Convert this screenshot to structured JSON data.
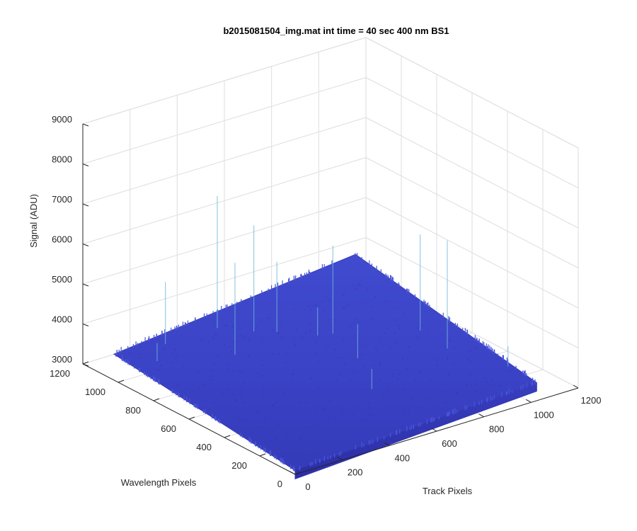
{
  "chart_data": {
    "type": "surface",
    "title": "b2015081504_img.mat int time = 40 sec  400 nm BS1",
    "xlabel": "Track Pixels",
    "ylabel": "Wavelength Pixels",
    "zlabel": "Signal (ADU)",
    "xlim": [
      0,
      1200
    ],
    "ylim": [
      0,
      1200
    ],
    "zlim": [
      3000,
      9000
    ],
    "x_ticks": [
      0,
      200,
      400,
      600,
      800,
      1000,
      1200
    ],
    "y_ticks": [
      0,
      200,
      400,
      600,
      800,
      1000,
      1200
    ],
    "z_ticks": [
      3000,
      4000,
      5000,
      6000,
      7000,
      8000,
      9000
    ],
    "grid": true,
    "surface_extent": {
      "x": [
        0,
        1024
      ],
      "y": [
        0,
        1024
      ]
    },
    "baseline_signal": 3600,
    "corner_signal": {
      "x0_y0": 3100,
      "x1024_y0": 3450,
      "x0_y1024": 3650,
      "x1024_y1024": 4300
    },
    "colormap": [
      "#2b2ea3",
      "#3a40c4",
      "#4753d6"
    ],
    "spikes": [
      {
        "x": 90,
        "y": 900,
        "z": 4050
      },
      {
        "x": 200,
        "y": 1000,
        "z": 5150
      },
      {
        "x": 330,
        "y": 780,
        "z": 5900
      },
      {
        "x": 500,
        "y": 900,
        "z": 6250
      },
      {
        "x": 420,
        "y": 1000,
        "z": 6900
      },
      {
        "x": 560,
        "y": 850,
        "z": 5350
      },
      {
        "x": 650,
        "y": 740,
        "z": 4300
      },
      {
        "x": 640,
        "y": 500,
        "z": 4450
      },
      {
        "x": 700,
        "y": 720,
        "z": 5800
      },
      {
        "x": 930,
        "y": 380,
        "z": 6300
      },
      {
        "x": 950,
        "y": 560,
        "z": 6000
      },
      {
        "x": 1000,
        "y": 130,
        "z": 4100
      },
      {
        "x": 520,
        "y": 260,
        "z": 4100
      }
    ]
  }
}
